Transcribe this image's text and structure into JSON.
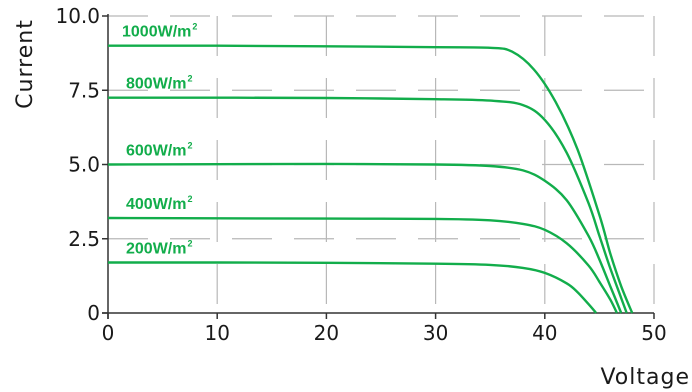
{
  "chart_data": {
    "type": "line",
    "title": "",
    "xlabel": "Voltage",
    "ylabel": "Current",
    "xlim": [
      0,
      50
    ],
    "ylim": [
      0,
      10
    ],
    "x_ticks": [
      "0",
      "10",
      "20",
      "30",
      "40",
      "50"
    ],
    "y_ticks": [
      "0",
      "2.5",
      "5.0",
      "7.5",
      "10.0"
    ],
    "grid": "dashed",
    "line_color": "#12ad4b",
    "series": [
      {
        "name": "1000W/m²",
        "label_text": "1000W/m",
        "label_sup": "2",
        "x": [
          0,
          10,
          20,
          30,
          35,
          37,
          39,
          41,
          43,
          45,
          46,
          47,
          48
        ],
        "y": [
          9.0,
          9.0,
          8.98,
          8.95,
          8.93,
          8.8,
          8.2,
          7.1,
          5.5,
          3.3,
          2.0,
          0.9,
          0
        ]
      },
      {
        "name": "800W/m²",
        "label_text": "800W/m",
        "label_sup": "2",
        "x": [
          0,
          10,
          20,
          30,
          35,
          38,
          40,
          42,
          44,
          45,
          46,
          47,
          47.5
        ],
        "y": [
          7.25,
          7.25,
          7.24,
          7.2,
          7.15,
          7.0,
          6.5,
          5.4,
          3.7,
          2.6,
          1.5,
          0.5,
          0
        ]
      },
      {
        "name": "600W/m²",
        "label_text": "600W/m",
        "label_sup": "2",
        "x": [
          0,
          10,
          20,
          30,
          35,
          38,
          40,
          42,
          44,
          45,
          46,
          47
        ],
        "y": [
          5.0,
          5.01,
          5.02,
          5.0,
          4.95,
          4.8,
          4.45,
          3.8,
          2.6,
          1.8,
          0.9,
          0
        ]
      },
      {
        "name": "400W/m²",
        "label_text": "400W/m",
        "label_sup": "2",
        "x": [
          0,
          10,
          20,
          30,
          35,
          38,
          40,
          42,
          44,
          45,
          46,
          46.6
        ],
        "y": [
          3.2,
          3.19,
          3.18,
          3.17,
          3.12,
          3.0,
          2.8,
          2.35,
          1.6,
          1.05,
          0.45,
          0
        ]
      },
      {
        "name": "200W/m²",
        "label_text": "200W/m",
        "label_sup": "2",
        "x": [
          0,
          10,
          20,
          30,
          35,
          38,
          40,
          42,
          43,
          44,
          44.7
        ],
        "y": [
          1.7,
          1.7,
          1.69,
          1.66,
          1.62,
          1.52,
          1.35,
          1.0,
          0.7,
          0.3,
          0
        ]
      }
    ]
  }
}
